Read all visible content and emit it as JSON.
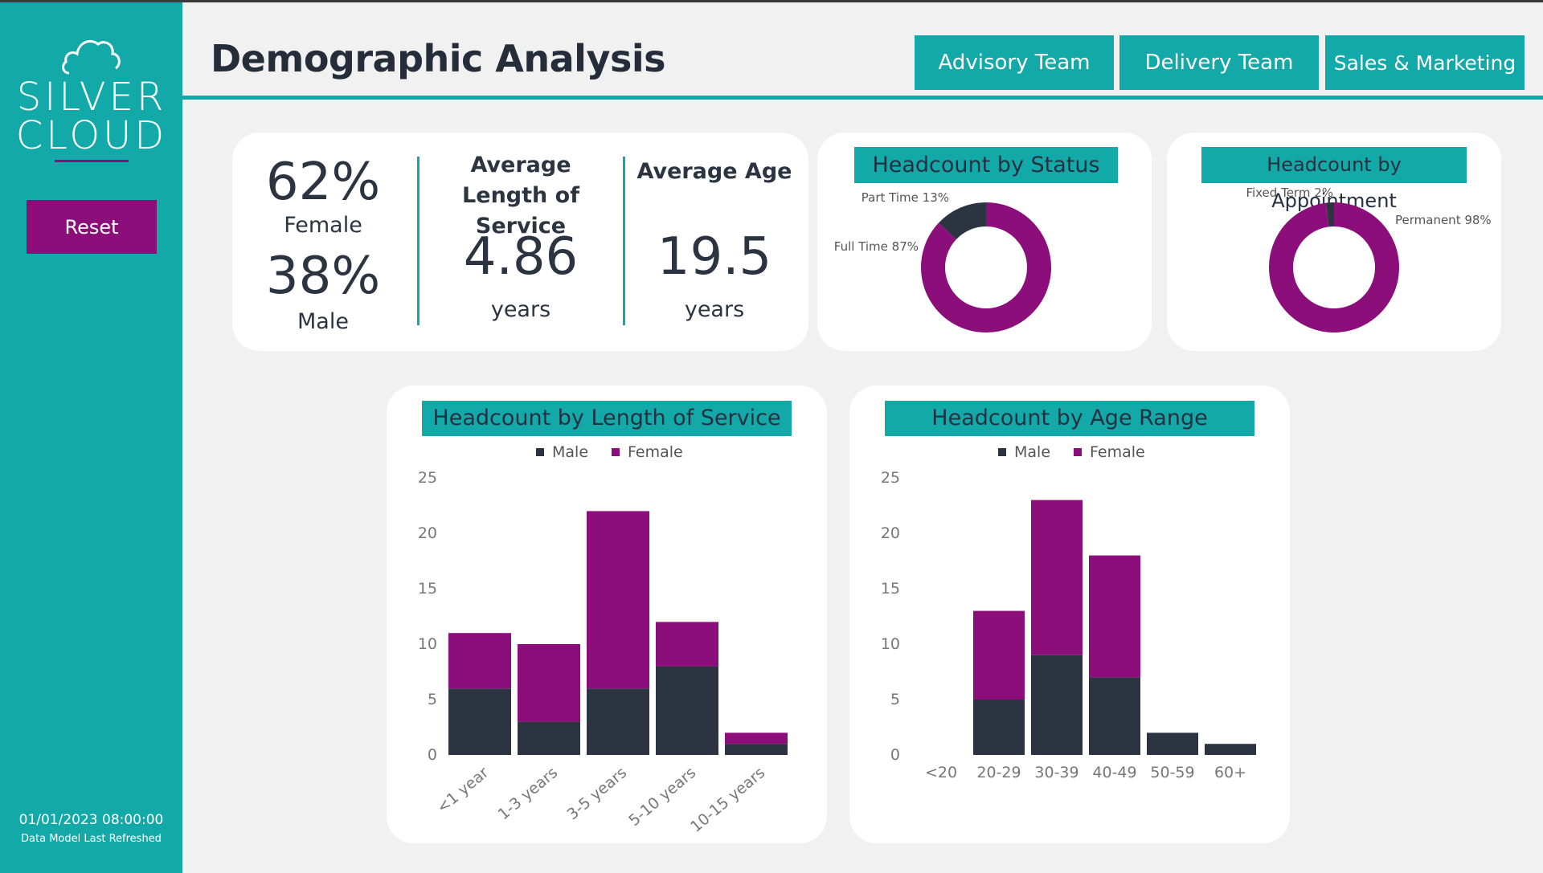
{
  "brand": {
    "line1": "SILVER",
    "line2": "CLOUD"
  },
  "sidebar": {
    "reset_label": "Reset",
    "refresh_time": "01/01/2023 08:00:00",
    "refresh_label": "Data Model Last Refreshed"
  },
  "header": {
    "title": "Demographic Analysis",
    "nav": [
      "Advisory Team",
      "Delivery Team",
      "Sales & Marketing"
    ]
  },
  "colors": {
    "teal": "#13a9a9",
    "purple": "#8b0e7a",
    "dark": "#2b3440",
    "background": "#f1f1f1"
  },
  "kpis": {
    "female_pct": "62%",
    "female_label": "Female",
    "male_pct": "38%",
    "male_label": "Male",
    "service_head": "Average Length of Service",
    "service_value": "4.86",
    "service_unit": "years",
    "age_head": "Average Age",
    "age_value": "19.5",
    "age_unit": "years"
  },
  "chart_data": [
    {
      "type": "pie",
      "title": "Headcount by Status",
      "labels": [
        "Full Time 87%",
        "Part Time 13%"
      ],
      "values": [
        87,
        13
      ],
      "colors": [
        "#8b0e7a",
        "#2b3440"
      ]
    },
    {
      "type": "pie",
      "title": "Headcount by Appointment",
      "labels": [
        "Permanent 98%",
        "Fixed Term 2%"
      ],
      "values": [
        98,
        2
      ],
      "colors": [
        "#8b0e7a",
        "#2b3440"
      ]
    },
    {
      "type": "bar",
      "title": "Headcount by Length of Service",
      "categories": [
        "<1 year",
        "1-3 years",
        "3-5 years",
        "5-10 years",
        "10-15 years"
      ],
      "series": [
        {
          "name": "Male",
          "values": [
            6,
            3,
            6,
            8,
            1
          ],
          "color": "#2b3440"
        },
        {
          "name": "Female",
          "values": [
            5,
            7,
            16,
            4,
            1
          ],
          "color": "#8b0e7a"
        }
      ],
      "yticks": [
        "0",
        "5",
        "10",
        "15",
        "20",
        "25"
      ],
      "ylim": [
        0,
        25
      ],
      "legend": "top-center",
      "grid": false
    },
    {
      "type": "bar",
      "title": "Headcount by Age Range",
      "categories": [
        "<20",
        "20-29",
        "30-39",
        "40-49",
        "50-59",
        "60+"
      ],
      "series": [
        {
          "name": "Male",
          "values": [
            0,
            5,
            9,
            7,
            2,
            1
          ],
          "color": "#2b3440"
        },
        {
          "name": "Female",
          "values": [
            0,
            8,
            14,
            11,
            0,
            0
          ],
          "color": "#8b0e7a"
        }
      ],
      "yticks": [
        "0",
        "5",
        "10",
        "15",
        "20",
        "25"
      ],
      "ylim": [
        0,
        25
      ],
      "legend": "top-center",
      "grid": false
    }
  ]
}
